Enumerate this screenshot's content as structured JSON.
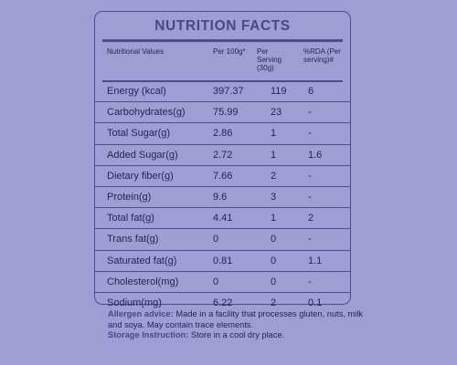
{
  "title": "NUTRITION FACTS",
  "header": {
    "col0": "Nutritional Values",
    "col1": "Per 100g*",
    "col2": "Per Serving (30g)",
    "col3": "%RDA (Per serving)#"
  },
  "rows": [
    {
      "name": "Energy (kcal)",
      "per100": "397.37",
      "serving": "119",
      "rda": "6"
    },
    {
      "name": "Carbohydrates(g)",
      "per100": "75.99",
      "serving": "23",
      "rda": "-"
    },
    {
      "name": "Total Sugar(g)",
      "per100": "2.86",
      "serving": "1",
      "rda": "-"
    },
    {
      "name": "Added Sugar(g)",
      "per100": "2.72",
      "serving": "1",
      "rda": "1.6"
    },
    {
      "name": "Dietary fiber(g)",
      "per100": "7.66",
      "serving": "2",
      "rda": "-"
    },
    {
      "name": "Protein(g)",
      "per100": "9.6",
      "serving": "3",
      "rda": "-"
    },
    {
      "name": "Total fat(g)",
      "per100": "4.41",
      "serving": "1",
      "rda": "2"
    },
    {
      "name": "Trans fat(g)",
      "per100": "0",
      "serving": "0",
      "rda": "-"
    },
    {
      "name": "Saturated fat(g)",
      "per100": "0.81",
      "serving": "0",
      "rda": "1.1"
    },
    {
      "name": "Cholesterol(mg)",
      "per100": "0",
      "serving": "0",
      "rda": "-"
    },
    {
      "name": "Sodium(mg)",
      "per100": "6.22",
      "serving": "2",
      "rda": "0.1"
    }
  ],
  "allergen": {
    "label": "Allergen advice:",
    "text": "Made in a facility that processes gluten, nuts, milk and soya. May contain trace elements."
  },
  "storage": {
    "label": "Storage Instruction:",
    "text": "Store in a cool dry place."
  }
}
